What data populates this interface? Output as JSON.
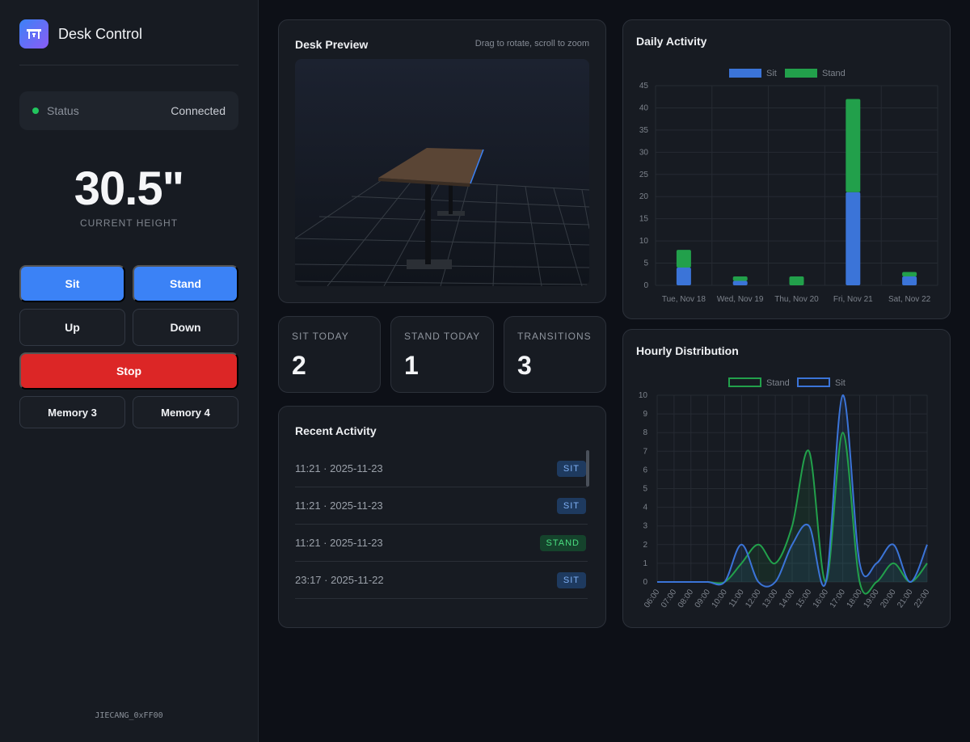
{
  "app": {
    "title": "Desk Control",
    "device_id": "JIECANG_0xFF00"
  },
  "status": {
    "label": "Status",
    "value": "Connected"
  },
  "height": {
    "value": "30.5\"",
    "caption": "CURRENT HEIGHT"
  },
  "controls": {
    "sit": "Sit",
    "stand": "Stand",
    "up": "Up",
    "down": "Down",
    "stop": "Stop",
    "memory3": "Memory 3",
    "memory4": "Memory 4"
  },
  "preview": {
    "title": "Desk Preview",
    "hint": "Drag to rotate, scroll to zoom"
  },
  "stats": [
    {
      "label": "SIT TODAY",
      "value": "2"
    },
    {
      "label": "STAND TODAY",
      "value": "1"
    },
    {
      "label": "TRANSITIONS",
      "value": "3"
    }
  ],
  "recent": {
    "title": "Recent Activity",
    "items": [
      {
        "time": "11:21 · 2025-11-23",
        "type": "SIT"
      },
      {
        "time": "11:21 · 2025-11-23",
        "type": "SIT"
      },
      {
        "time": "11:21 · 2025-11-23",
        "type": "STAND"
      },
      {
        "time": "23:17 · 2025-11-22",
        "type": "SIT"
      }
    ]
  },
  "colors": {
    "sit": "#3b74d8",
    "stand": "#22a04b",
    "accent": "#3b82f6",
    "stop": "#dc2626"
  },
  "chart_data": [
    {
      "type": "bar",
      "stacked": true,
      "title": "Daily Activity",
      "categories": [
        "Tue, Nov 18",
        "Wed, Nov 19",
        "Thu, Nov 20",
        "Fri, Nov 21",
        "Sat, Nov 22"
      ],
      "series": [
        {
          "name": "Sit",
          "values": [
            4,
            1,
            0,
            21,
            2
          ]
        },
        {
          "name": "Stand",
          "values": [
            4,
            1,
            2,
            21,
            1
          ]
        }
      ],
      "ylim": [
        0,
        45
      ],
      "yticks": [
        0,
        5,
        10,
        15,
        20,
        25,
        30,
        35,
        40,
        45
      ],
      "legend": "top-center"
    },
    {
      "type": "area",
      "title": "Hourly Distribution",
      "x": [
        "06:00",
        "07:00",
        "08:00",
        "09:00",
        "10:00",
        "11:00",
        "12:00",
        "13:00",
        "14:00",
        "15:00",
        "16:00",
        "17:00",
        "18:00",
        "19:00",
        "20:00",
        "21:00",
        "22:00"
      ],
      "series": [
        {
          "name": "Stand",
          "values": [
            0,
            0,
            0,
            0,
            0,
            1,
            2,
            1,
            3,
            7,
            0,
            8,
            0,
            0,
            1,
            0,
            1
          ]
        },
        {
          "name": "Sit",
          "values": [
            0,
            0,
            0,
            0,
            0,
            2,
            0,
            0,
            2,
            3,
            0,
            10,
            1,
            1,
            2,
            0,
            2
          ]
        }
      ],
      "ylim": [
        0,
        10
      ],
      "yticks": [
        0,
        1,
        2,
        3,
        4,
        5,
        6,
        7,
        8,
        9,
        10
      ],
      "legend": "top-center"
    }
  ]
}
